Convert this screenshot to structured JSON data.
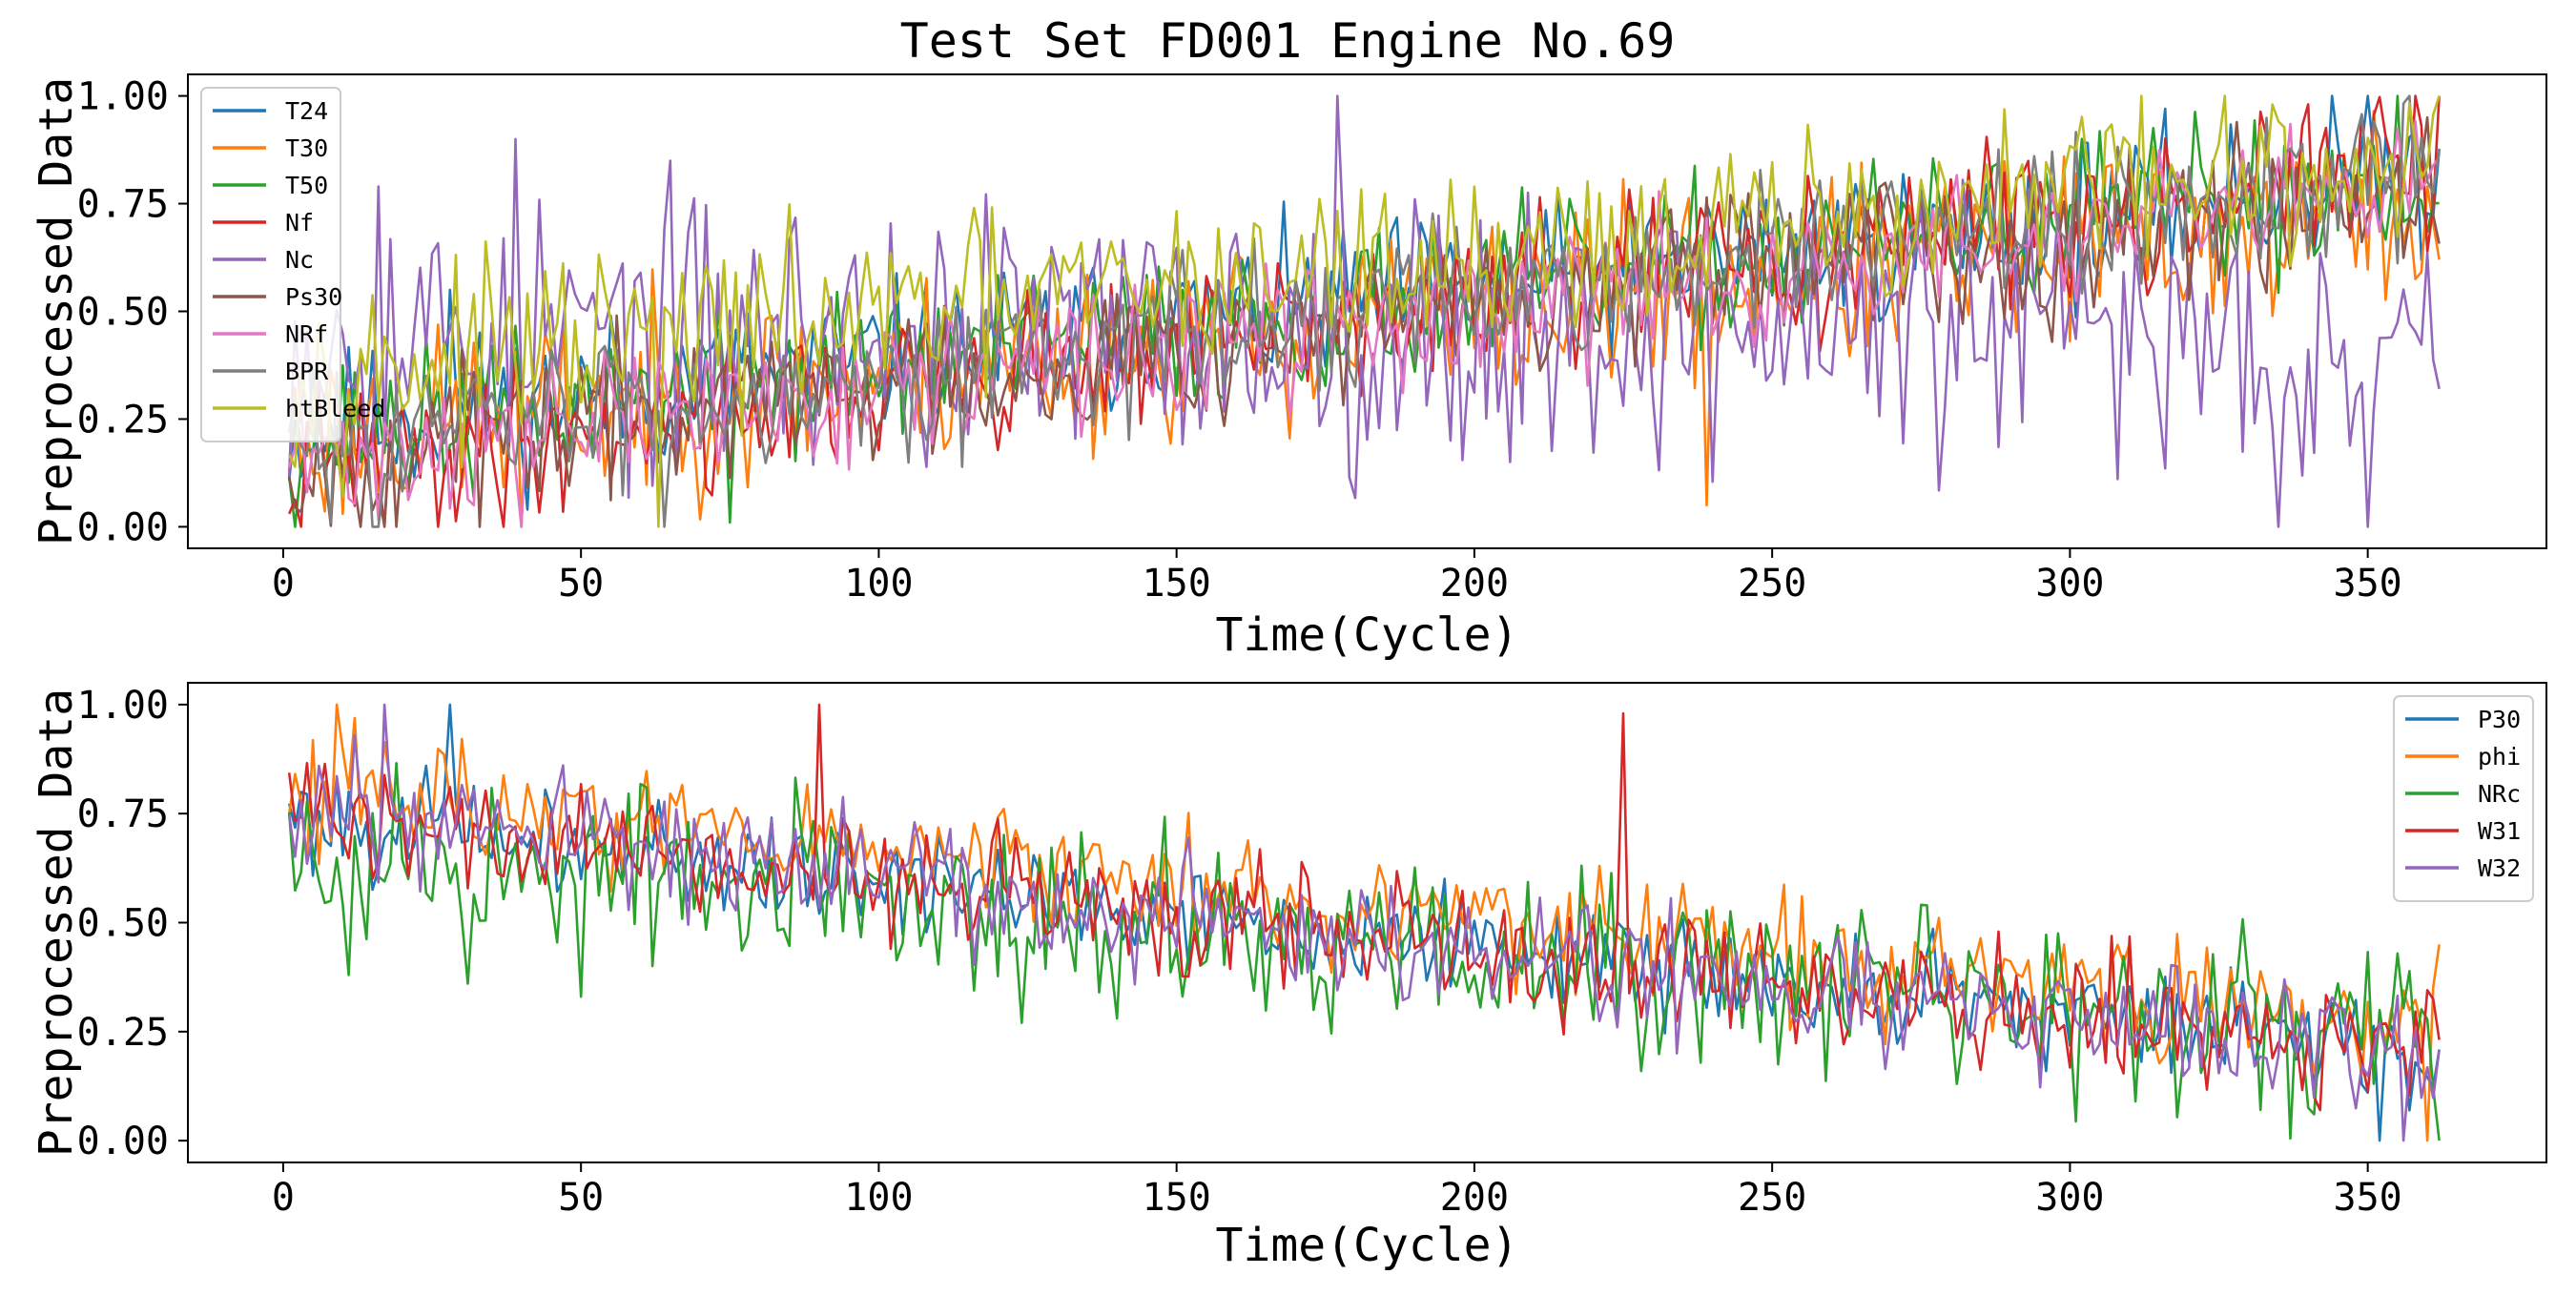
{
  "title": "Test Set FD001 Engine No.69",
  "chart_data": [
    {
      "type": "line",
      "xlabel": "Time(Cycle)",
      "ylabel": "Preprocessed Data",
      "xlim": [
        -16,
        380
      ],
      "ylim": [
        -0.05,
        1.05
      ],
      "xticks": [
        0,
        50,
        100,
        150,
        200,
        250,
        300,
        350
      ],
      "xtick_labels": [
        "0",
        "50",
        "100",
        "150",
        "200",
        "250",
        "300",
        "350"
      ],
      "yticks": [
        0.0,
        0.25,
        0.5,
        0.75,
        1.0
      ],
      "ytick_labels": [
        "0.00",
        "0.25",
        "0.50",
        "0.75",
        "1.00"
      ],
      "legend_position": "upper-left",
      "cycles": 362,
      "series": [
        {
          "name": "T24",
          "color": "#1f77b4",
          "start": 0.22,
          "end": 0.82,
          "noise": 0.09,
          "seed": 11,
          "key_points": [
            [
              28,
              0.55
            ],
            [
              239,
              0.75
            ],
            [
              344,
              1.0
            ]
          ]
        },
        {
          "name": "T30",
          "color": "#ff7f0e",
          "start": 0.2,
          "end": 0.74,
          "noise": 0.11,
          "seed": 23,
          "key_points": [
            [
              40,
              0.0
            ],
            [
              239,
              0.05
            ],
            [
              362,
              0.62
            ]
          ]
        },
        {
          "name": "T50",
          "color": "#2ca02c",
          "start": 0.2,
          "end": 0.82,
          "noise": 0.09,
          "seed": 37,
          "key_points": [
            [
              75,
              0.01
            ],
            [
              355,
              1.0
            ]
          ]
        },
        {
          "name": "Nf",
          "color": "#d62728",
          "start": 0.12,
          "end": 0.85,
          "noise": 0.09,
          "seed": 41,
          "key_points": [
            [
              1,
              0.03
            ],
            [
              358,
              1.0
            ]
          ]
        },
        {
          "name": "Nc",
          "color": "#9467bd",
          "start": 0.45,
          "end": 0.45,
          "noise": 0.16,
          "seed": 53,
          "key_points": [
            [
              16,
              0.79
            ],
            [
              39,
              0.9
            ],
            [
              177,
              1.0
            ],
            [
              335,
              0.0
            ],
            [
              350,
              0.0
            ],
            [
              362,
              0.32
            ]
          ]
        },
        {
          "name": "Ps30",
          "color": "#8c564b",
          "start": 0.15,
          "end": 0.8,
          "noise": 0.09,
          "seed": 67,
          "key_points": [
            [
              33,
              0.0
            ],
            [
              360,
              0.95
            ]
          ]
        },
        {
          "name": "NRf",
          "color": "#e377c2",
          "start": 0.15,
          "end": 0.78,
          "noise": 0.08,
          "seed": 71,
          "key_points": [
            [
              40,
              0.0
            ]
          ]
        },
        {
          "name": "BPR",
          "color": "#7f7f7f",
          "start": 0.18,
          "end": 0.82,
          "noise": 0.09,
          "seed": 83,
          "key_points": [
            [
              64,
              0.0
            ],
            [
              357,
              1.0
            ]
          ]
        },
        {
          "name": "htBleed",
          "color": "#bcbd22",
          "start": 0.35,
          "end": 0.85,
          "noise": 0.1,
          "seed": 97,
          "key_points": [
            [
              63,
              0.0
            ],
            [
              312,
              1.0
            ],
            [
              326,
              1.0
            ],
            [
              362,
              1.0
            ]
          ]
        }
      ]
    },
    {
      "type": "line",
      "xlabel": "Time(Cycle)",
      "ylabel": "Preprocessed Data",
      "xlim": [
        -16,
        380
      ],
      "ylim": [
        -0.05,
        1.05
      ],
      "xticks": [
        0,
        50,
        100,
        150,
        200,
        250,
        300,
        350
      ],
      "xtick_labels": [
        "0",
        "50",
        "100",
        "150",
        "200",
        "250",
        "300",
        "350"
      ],
      "yticks": [
        0.0,
        0.25,
        0.5,
        0.75,
        1.0
      ],
      "ytick_labels": [
        "0.00",
        "0.25",
        "0.50",
        "0.75",
        "1.00"
      ],
      "legend_position": "upper-right",
      "cycles": 362,
      "series": [
        {
          "name": "P30",
          "color": "#1f77b4",
          "start": 0.75,
          "end": 0.2,
          "noise": 0.06,
          "seed": 101,
          "key_points": [
            [
              28,
              1.0
            ],
            [
              352,
              0.0
            ]
          ]
        },
        {
          "name": "phi",
          "color": "#ff7f0e",
          "start": 0.82,
          "end": 0.25,
          "noise": 0.07,
          "seed": 113,
          "key_points": [
            [
              9,
              1.0
            ],
            [
              360,
              0.0
            ],
            [
              362,
              0.45
            ]
          ]
        },
        {
          "name": "NRc",
          "color": "#2ca02c",
          "start": 0.68,
          "end": 0.22,
          "noise": 0.1,
          "seed": 127,
          "key_points": [
            [
              11,
              0.38
            ],
            [
              31,
              0.36
            ],
            [
              50,
              0.33
            ],
            [
              137,
              0.34
            ],
            [
              173,
              0.3
            ],
            [
              281,
              0.13
            ],
            [
              362,
              0.0
            ]
          ]
        },
        {
          "name": "W31",
          "color": "#d62728",
          "start": 0.75,
          "end": 0.2,
          "noise": 0.07,
          "seed": 139,
          "key_points": [
            [
              90,
              1.0
            ],
            [
              225,
              0.98
            ],
            [
              342,
              0.07
            ]
          ]
        },
        {
          "name": "W32",
          "color": "#9467bd",
          "start": 0.75,
          "end": 0.2,
          "noise": 0.07,
          "seed": 151,
          "key_points": [
            [
              17,
              1.0
            ],
            [
              234,
              0.2
            ],
            [
              356,
              0.0
            ]
          ]
        }
      ]
    }
  ]
}
